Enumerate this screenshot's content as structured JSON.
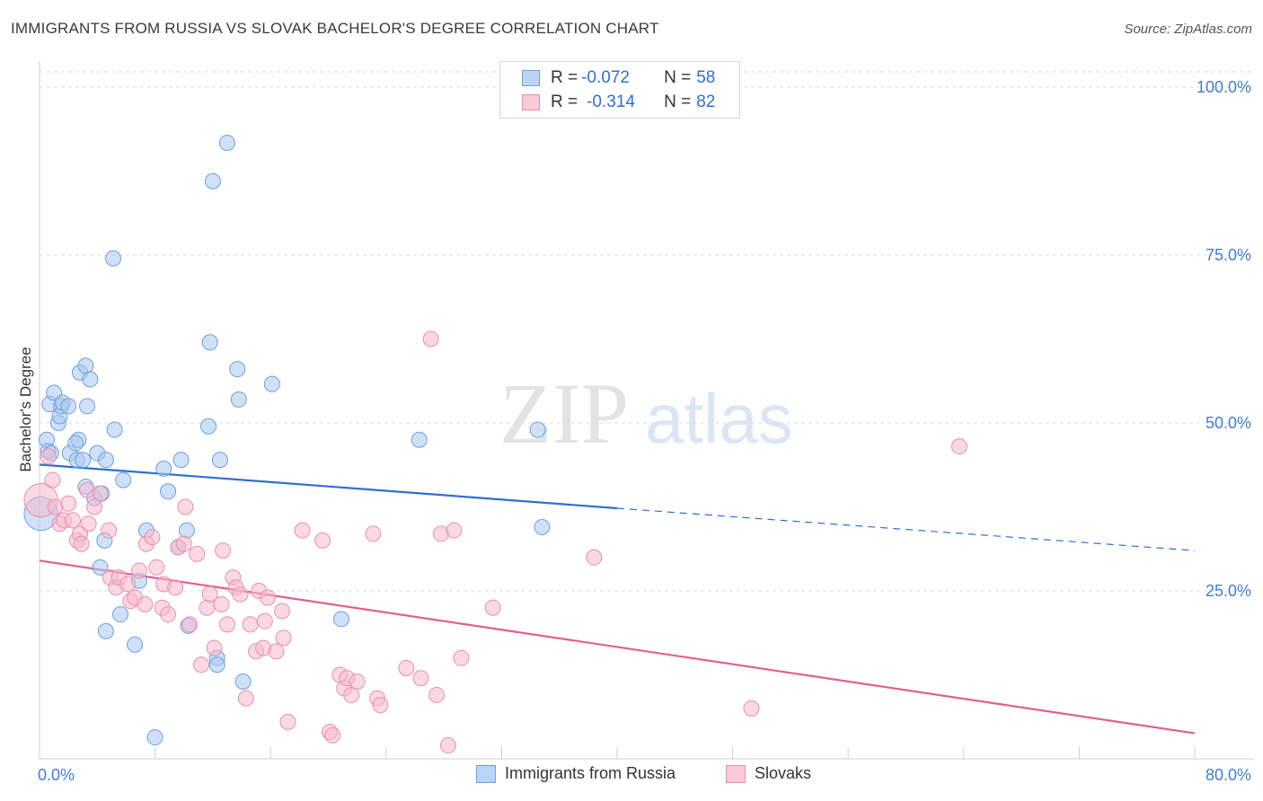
{
  "title": "IMMIGRANTS FROM RUSSIA VS SLOVAK BACHELOR'S DEGREE CORRELATION CHART",
  "source": "Source: ZipAtlas.com",
  "watermark": {
    "zip": "ZIP",
    "atlas": "atlas"
  },
  "legend": {
    "russia": {
      "r_label": "R = ",
      "r_value": "-0.072",
      "n_label": "N = ",
      "n_value": "58"
    },
    "slovaks": {
      "r_label": "R = ",
      "r_value": "-0.314",
      "n_label": "N = ",
      "n_value": "82"
    }
  },
  "colors": {
    "russia_fill": "#a9c8f0",
    "russia_stroke": "#6f9fdc",
    "russia_line": "#2f6fd0",
    "slovaks_fill": "#f6b9cc",
    "slovaks_stroke": "#e98fae",
    "slovaks_line": "#e0608e",
    "grid": "#dedede",
    "tick_label": "#4a7cc7"
  },
  "chart_data": {
    "type": "scatter",
    "title": "IMMIGRANTS FROM RUSSIA VS SLOVAK BACHELOR'S DEGREE CORRELATION CHART",
    "xlabel": "",
    "ylabel": "Bachelor's Degree",
    "xlim": [
      0,
      80
    ],
    "ylim": [
      0,
      100
    ],
    "x_tick_labels": [
      "0.0%",
      "80.0%"
    ],
    "y_ticks": [
      25,
      50,
      75,
      100
    ],
    "y_tick_labels": [
      "25.0%",
      "50.0%",
      "75.0%",
      "100.0%"
    ],
    "grid": true,
    "legend_position": "bottom",
    "series": [
      {
        "name": "Immigrants from Russia",
        "points": [
          [
            0.1,
            36.5,
            2.2
          ],
          [
            0.5,
            47.5,
            1
          ],
          [
            0.6,
            45.8,
            1
          ],
          [
            0.8,
            45.5,
            1
          ],
          [
            0.7,
            52.8,
            1
          ],
          [
            1.0,
            54.5,
            1
          ],
          [
            1.3,
            50.0,
            1
          ],
          [
            1.4,
            51.0,
            1
          ],
          [
            1.5,
            52.5,
            1
          ],
          [
            1.6,
            53.0,
            1
          ],
          [
            2.1,
            45.5,
            1
          ],
          [
            2.0,
            52.5,
            1
          ],
          [
            2.6,
            44.5,
            1
          ],
          [
            2.7,
            47.5,
            1
          ],
          [
            2.5,
            47.0,
            1
          ],
          [
            2.8,
            57.5,
            1
          ],
          [
            3.2,
            58.5,
            1
          ],
          [
            3.5,
            56.5,
            1
          ],
          [
            3.3,
            52.5,
            1
          ],
          [
            3.0,
            44.5,
            1
          ],
          [
            4.0,
            45.5,
            1
          ],
          [
            4.6,
            44.5,
            1
          ],
          [
            3.2,
            40.5,
            1
          ],
          [
            3.8,
            38.8,
            1
          ],
          [
            4.3,
            39.5,
            1
          ],
          [
            5.2,
            49.0,
            1
          ],
          [
            5.8,
            41.5,
            1
          ],
          [
            5.1,
            74.5,
            1
          ],
          [
            4.2,
            28.5,
            1
          ],
          [
            4.5,
            32.5,
            1
          ],
          [
            4.6,
            19.0,
            1
          ],
          [
            5.6,
            21.5,
            1
          ],
          [
            6.6,
            17.0,
            1
          ],
          [
            6.9,
            26.5,
            1
          ],
          [
            7.4,
            34.0,
            1
          ],
          [
            8.6,
            43.2,
            1
          ],
          [
            8.9,
            39.8,
            1
          ],
          [
            9.6,
            31.5,
            1
          ],
          [
            9.8,
            44.5,
            1
          ],
          [
            10.2,
            34.0,
            1
          ],
          [
            10.3,
            19.8,
            1
          ],
          [
            8.0,
            3.2,
            1
          ],
          [
            11.7,
            49.5,
            1
          ],
          [
            11.8,
            62.0,
            1
          ],
          [
            12.0,
            86.0,
            1
          ],
          [
            12.5,
            44.5,
            1
          ],
          [
            12.3,
            15.0,
            1
          ],
          [
            12.3,
            14.0,
            1
          ],
          [
            13.0,
            91.7,
            1
          ],
          [
            13.7,
            58.0,
            1
          ],
          [
            13.8,
            53.5,
            1
          ],
          [
            14.1,
            11.5,
            1
          ],
          [
            16.1,
            55.8,
            1
          ],
          [
            20.9,
            20.8,
            1
          ],
          [
            26.3,
            47.5,
            1
          ],
          [
            34.5,
            49.0,
            1
          ],
          [
            34.8,
            34.5,
            1
          ]
        ],
        "trend": {
          "x": [
            0,
            40
          ],
          "y": [
            43.8,
            37.3
          ],
          "dashed_to": [
            80,
            31.0
          ]
        }
      },
      {
        "name": "Slovaks",
        "points": [
          [
            0.1,
            38.5,
            2.2
          ],
          [
            0.6,
            45.0,
            1
          ],
          [
            0.9,
            41.5,
            1
          ],
          [
            1.1,
            37.5,
            1
          ],
          [
            1.4,
            35.0,
            1
          ],
          [
            1.7,
            35.5,
            1
          ],
          [
            2.0,
            38.0,
            1
          ],
          [
            2.3,
            35.5,
            1
          ],
          [
            2.6,
            32.5,
            1
          ],
          [
            2.8,
            33.5,
            1
          ],
          [
            2.9,
            32.0,
            1
          ],
          [
            3.3,
            40.0,
            1
          ],
          [
            3.4,
            35.0,
            1
          ],
          [
            3.8,
            37.5,
            1
          ],
          [
            4.2,
            39.5,
            1
          ],
          [
            4.8,
            34.0,
            1
          ],
          [
            4.9,
            27.0,
            1
          ],
          [
            5.3,
            25.5,
            1
          ],
          [
            5.5,
            27.0,
            1
          ],
          [
            6.1,
            26.0,
            1
          ],
          [
            6.3,
            23.5,
            1
          ],
          [
            6.6,
            24.0,
            1
          ],
          [
            6.9,
            28.0,
            1
          ],
          [
            7.3,
            23.0,
            1
          ],
          [
            7.4,
            32.0,
            1
          ],
          [
            7.8,
            33.0,
            1
          ],
          [
            8.1,
            28.5,
            1
          ],
          [
            8.5,
            22.5,
            1
          ],
          [
            8.6,
            26.0,
            1
          ],
          [
            8.9,
            21.5,
            1
          ],
          [
            9.4,
            25.5,
            1
          ],
          [
            9.6,
            31.5,
            1
          ],
          [
            10.0,
            32.0,
            1
          ],
          [
            10.1,
            37.5,
            1
          ],
          [
            10.4,
            20.0,
            1
          ],
          [
            10.9,
            30.5,
            1
          ],
          [
            11.2,
            14.0,
            1
          ],
          [
            11.6,
            22.5,
            1
          ],
          [
            11.8,
            24.5,
            1
          ],
          [
            12.1,
            16.5,
            1
          ],
          [
            12.6,
            23.0,
            1
          ],
          [
            12.7,
            31.0,
            1
          ],
          [
            13.0,
            20.0,
            1
          ],
          [
            13.4,
            27.0,
            1
          ],
          [
            13.6,
            25.5,
            1
          ],
          [
            13.9,
            24.5,
            1
          ],
          [
            14.3,
            9.0,
            1
          ],
          [
            14.6,
            20.0,
            1
          ],
          [
            15.0,
            16.0,
            1
          ],
          [
            15.2,
            25.0,
            1
          ],
          [
            15.5,
            16.5,
            1
          ],
          [
            15.6,
            20.5,
            1
          ],
          [
            15.8,
            24.0,
            1
          ],
          [
            16.4,
            16.0,
            1
          ],
          [
            16.8,
            22.0,
            1
          ],
          [
            16.9,
            18.0,
            1
          ],
          [
            17.2,
            5.5,
            1
          ],
          [
            18.2,
            34.0,
            1
          ],
          [
            19.6,
            32.5,
            1
          ],
          [
            20.1,
            4.0,
            1
          ],
          [
            20.3,
            3.5,
            1
          ],
          [
            20.8,
            12.5,
            1
          ],
          [
            21.1,
            10.5,
            1
          ],
          [
            21.3,
            12.0,
            1
          ],
          [
            21.6,
            9.5,
            1
          ],
          [
            22.0,
            11.5,
            1
          ],
          [
            23.1,
            33.5,
            1
          ],
          [
            23.4,
            9.0,
            1
          ],
          [
            23.6,
            8.0,
            1
          ],
          [
            25.4,
            13.5,
            1
          ],
          [
            26.4,
            12.0,
            1
          ],
          [
            27.1,
            62.5,
            1
          ],
          [
            27.5,
            9.5,
            1
          ],
          [
            27.8,
            33.5,
            1
          ],
          [
            28.3,
            2.0,
            1
          ],
          [
            28.7,
            34.0,
            1
          ],
          [
            29.2,
            15.0,
            1
          ],
          [
            31.4,
            22.5,
            1
          ],
          [
            38.4,
            30.0,
            1
          ],
          [
            49.3,
            7.5,
            1
          ],
          [
            63.7,
            46.5,
            1
          ]
        ],
        "trend": {
          "x": [
            0,
            80
          ],
          "y": [
            29.5,
            3.8
          ]
        }
      }
    ]
  }
}
